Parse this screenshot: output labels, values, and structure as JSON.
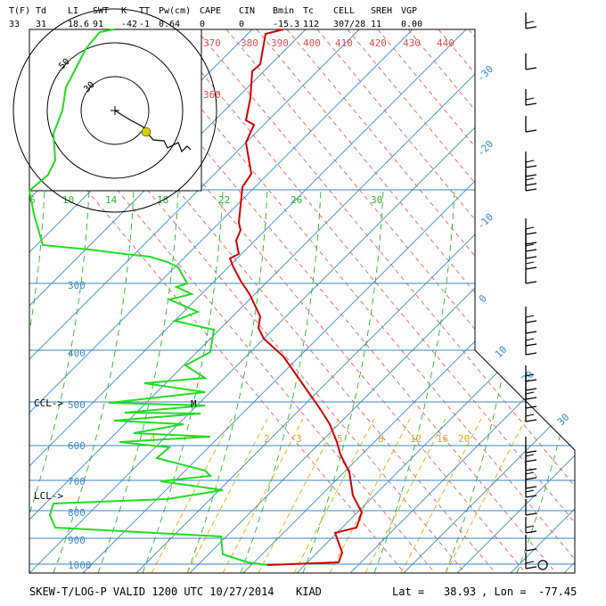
{
  "header": {
    "labels": [
      "T(F)",
      "Td",
      "LI",
      "SWT",
      "K",
      "TT",
      "Pw(cm)",
      "CAPE",
      "CIN",
      "Bmin",
      "Tc",
      "CELL",
      "SREH",
      "VGP"
    ],
    "values": [
      "33",
      "31",
      "18.6",
      "91",
      "-42",
      "-1",
      "0.64",
      "0",
      "0",
      "-15.3",
      "112",
      "307/28",
      "11",
      "0.00"
    ]
  },
  "footer": {
    "title": "SKEW-T/LOG-P VALID 1200 UTC 10/27/2014",
    "station": "KIAD",
    "lat_label": "Lat =",
    "lat": "38.93",
    "lon_label": ", Lon =",
    "lon": "-77.45"
  },
  "colors": {
    "isobar": "#3a87c6",
    "isotherm": "#3a87c6",
    "dry_adiabat": "#e05050",
    "moist_adiabat": "#2bb52b",
    "mixing_ratio": "#d9b000",
    "temperature": "#d40000",
    "dewpoint": "#22dd22",
    "hodograph": "#000000",
    "wind_barb": "#000000"
  },
  "chart_data": {
    "type": "skew-t log-p",
    "pressure_levels": [
      "300",
      "400",
      "500",
      "600",
      "700",
      "800",
      "900",
      "1000"
    ],
    "isotherm_labels": [
      "-30",
      "-20",
      "-10",
      "0",
      "10",
      "20",
      "30"
    ],
    "potential_temperature_labels": [
      "370",
      "380",
      "390",
      "400",
      "410",
      "420",
      "430",
      "440",
      "360"
    ],
    "equivalent_potential_temperature_labels": [
      "6",
      "10",
      "14",
      "18",
      "22",
      "26",
      "30"
    ],
    "mixing_ratio_labels": [
      "4",
      "2",
      "3",
      "5",
      "8",
      "12",
      "16",
      "20"
    ],
    "markers": {
      "ccl": "CCL->",
      "lcl": "LCL->",
      "m": "M"
    },
    "hodograph_ring_labels": [
      "30",
      "50"
    ],
    "temperature_profile_label": "T",
    "dewpoint_profile_label": "Td"
  }
}
